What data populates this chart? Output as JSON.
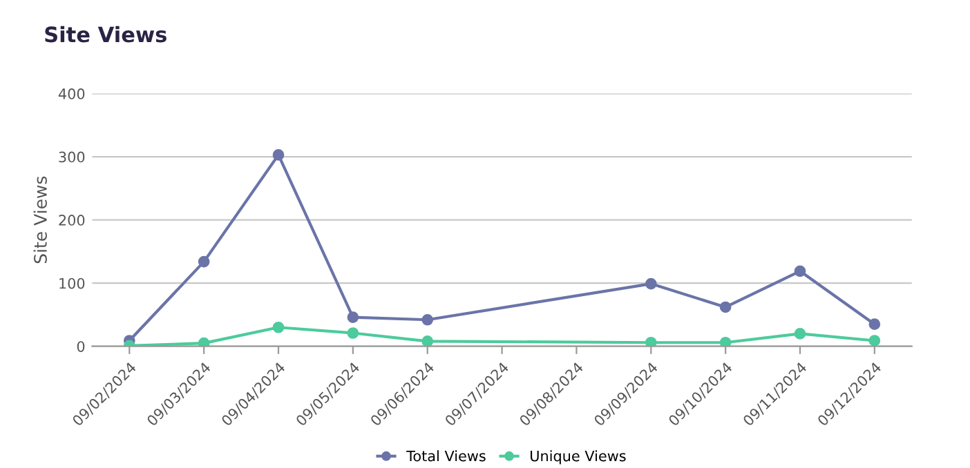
{
  "chart_data": {
    "type": "line",
    "title": "Site Views",
    "ylabel": "Site Views",
    "categories": [
      "09/02/2024",
      "09/03/2024",
      "09/04/2024",
      "09/05/2024",
      "09/06/2024",
      "09/07/2024",
      "09/08/2024",
      "09/09/2024",
      "09/10/2024",
      "09/11/2024",
      "09/12/2024"
    ],
    "series": [
      {
        "name": "Total Views",
        "color": "#6b74a8",
        "values": [
          9,
          134,
          303,
          46,
          42,
          null,
          null,
          99,
          62,
          119,
          35
        ]
      },
      {
        "name": "Unique Views",
        "color": "#4ccb9c",
        "values": [
          1,
          5,
          30,
          21,
          8,
          null,
          null,
          6,
          6,
          20,
          9
        ]
      }
    ],
    "ylim": [
      0,
      400
    ],
    "yticks": [
      0,
      100,
      200,
      300,
      400
    ],
    "grid": "y",
    "legend": "bottom",
    "marker": "circle"
  }
}
